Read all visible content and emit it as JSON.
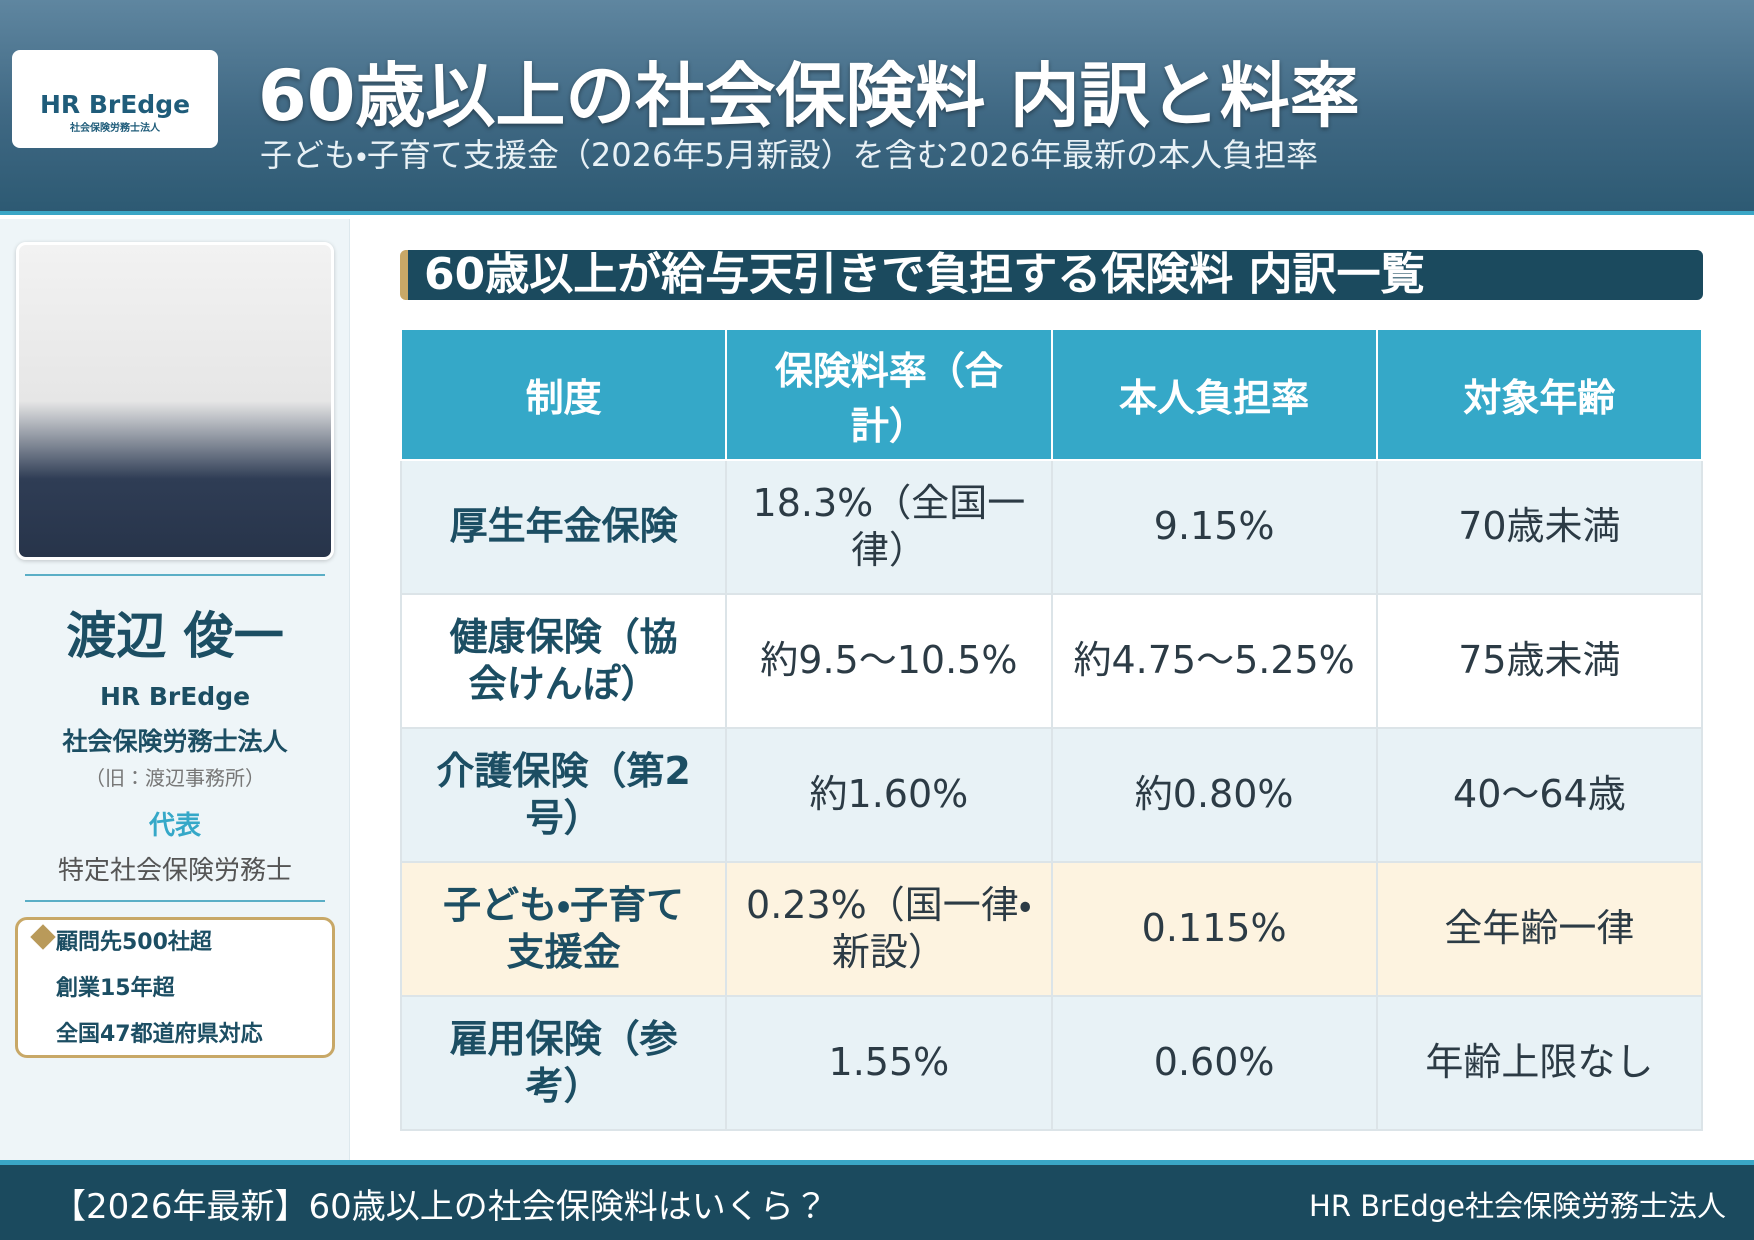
{
  "header": {
    "logo": {
      "name": "HR BrEdge",
      "sub": "社会保険労務士法人"
    },
    "title": "60歳以上の社会保険料 内訳と料率",
    "subtitle": "子ども・子育て支援金（2026年5月新設）を含む2026年最新の本人負担率"
  },
  "profile": {
    "name": "渡辺 俊一",
    "org": "HR BrEdge",
    "org_type": "社会保険労務士法人",
    "former": "（旧：渡辺事務所）",
    "role": "代表",
    "qualification": "特定社会保険労務士",
    "badges": [
      "顧問先500社超",
      "創業15年超",
      "全国47都道府県対応"
    ]
  },
  "section_title": "60歳以上が給与天引きで負担する保険料 内訳一覧",
  "table": {
    "headers": [
      "制度",
      "保険料率（合計）",
      "本人負担率",
      "対象年齢"
    ],
    "rows": [
      [
        "厚生年金保険",
        "18.3%（全国一律）",
        "9.15%",
        "70歳未満"
      ],
      [
        "健康保険（協会けんぽ）",
        "約9.5～10.5%",
        "約4.75～5.25%",
        "75歳未満"
      ],
      [
        "介護保険（第2号）",
        "約1.60%",
        "約0.80%",
        "40～64歳"
      ],
      [
        "子ども・子育て支援金",
        "0.23%（国一律・新設）",
        "0.115%",
        "全年齢一律"
      ],
      [
        "雇用保険（参考）",
        "1.55%",
        "0.60%",
        "年齢上限なし"
      ]
    ]
  },
  "footer": {
    "left": "【2026年最新】60歳以上の社会保険料はいくら？",
    "right": "HR BrEdge社会保険労務士法人"
  }
}
